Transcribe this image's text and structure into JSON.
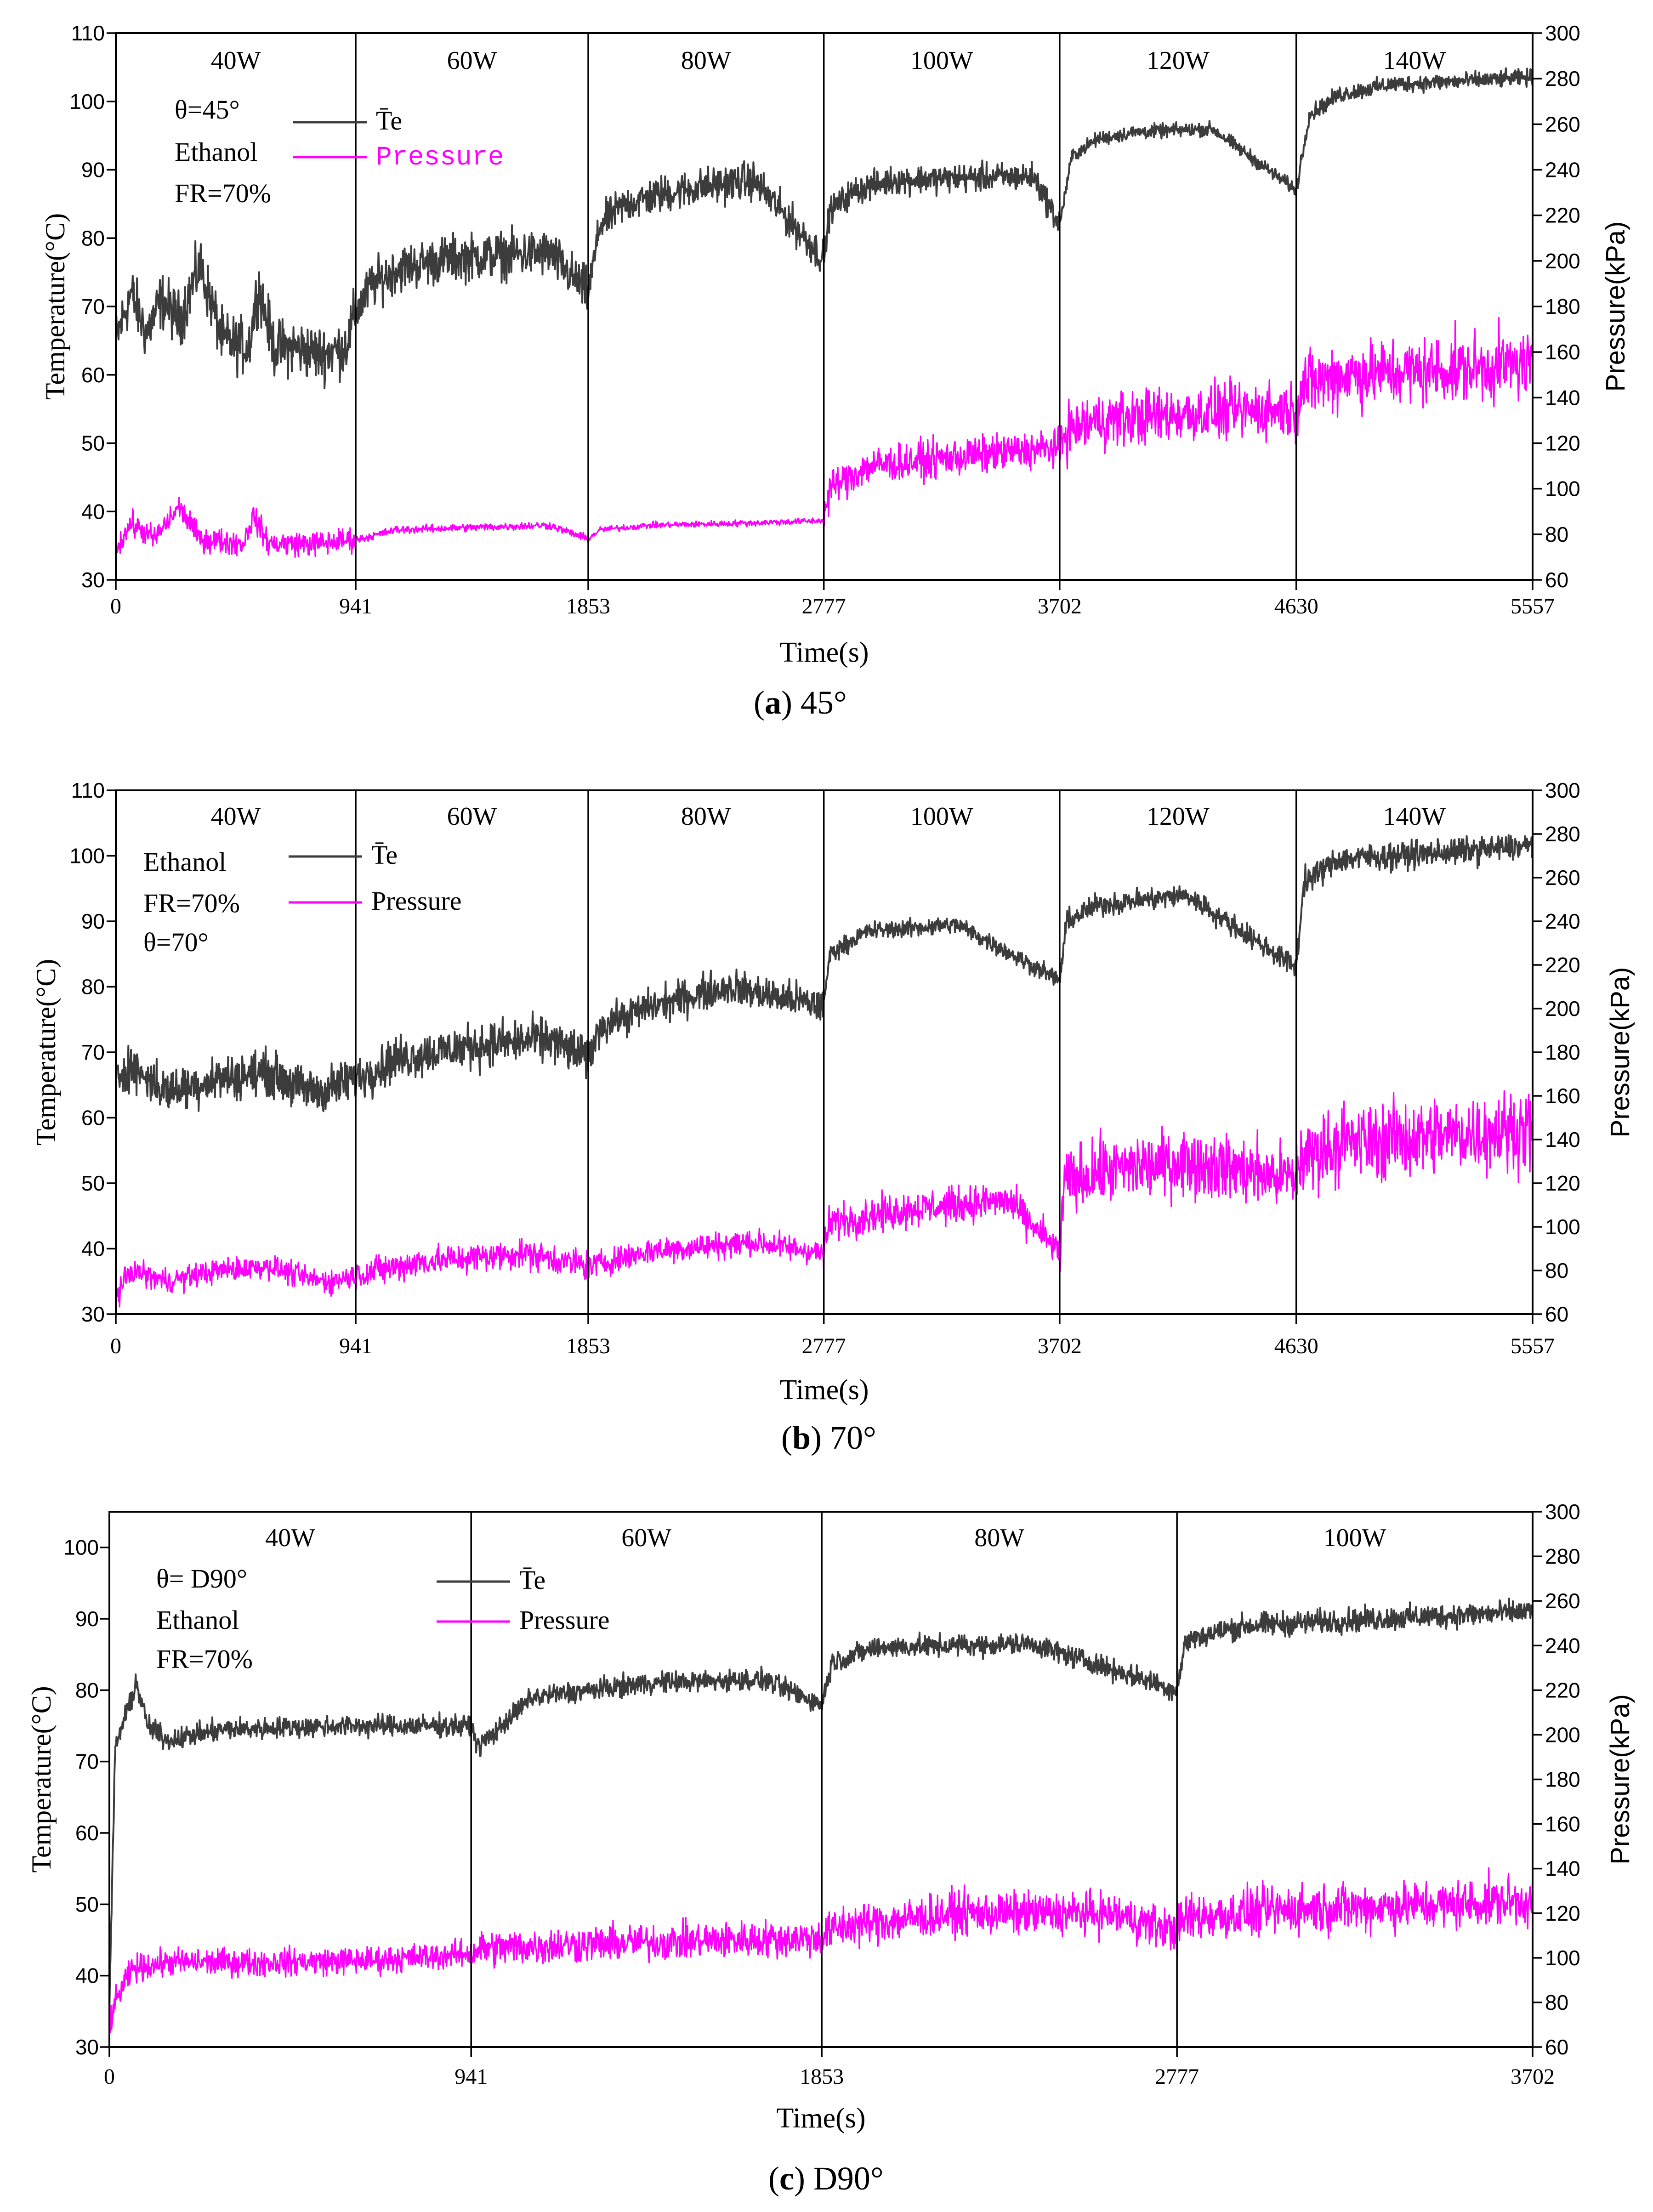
{
  "colors": {
    "temperature": "#3c3c3c",
    "pressure": "#ff00ff",
    "axis": "#000000"
  },
  "chart_data": [
    {
      "type": "line",
      "caption": {
        "letter": "a",
        "text": "45°"
      },
      "xlabel": "Time(s)",
      "ylabel_left": "Temperature(°C)",
      "ylabel_right": "Pressure(kPa)",
      "xlim": [
        0,
        5557
      ],
      "ylim_left": [
        30,
        110
      ],
      "ylim_right": [
        60,
        300
      ],
      "x_ticks": [
        0,
        941,
        1853,
        2777,
        3702,
        4630,
        5557
      ],
      "x_tick_labels": [
        "0",
        "941",
        "1853",
        "2777",
        "3702",
        "4630",
        "5557"
      ],
      "y_ticks_left": [
        30,
        40,
        50,
        60,
        70,
        80,
        90,
        100,
        110
      ],
      "y_tick_labels_left": [
        "30",
        "40",
        "50",
        "60",
        "70",
        "80",
        "90",
        "100",
        "110"
      ],
      "y_ticks_right": [
        60,
        80,
        100,
        120,
        140,
        160,
        180,
        200,
        220,
        240,
        260,
        280,
        300
      ],
      "y_tick_labels_right": [
        "60",
        "80",
        "100",
        "120",
        "140",
        "160",
        "180",
        "200",
        "220",
        "240",
        "260",
        "280",
        "300"
      ],
      "segment_bounds": [
        0,
        941,
        1853,
        2777,
        3702,
        4630,
        5557
      ],
      "segment_labels": [
        "40W",
        "60W",
        "80W",
        "100W",
        "120W",
        "140W"
      ],
      "annotations": [
        "θ=45°",
        "Ethanol",
        "FR=70%"
      ],
      "legend": {
        "position": "top-left",
        "entries": [
          "T̄e",
          "Pressure"
        ]
      },
      "series": [
        {
          "name": "T̄e",
          "axis": "left",
          "x": [
            0,
            60,
            120,
            180,
            250,
            330,
            420,
            520,
            560,
            620,
            700,
            800,
            900,
            941,
            1000,
            1100,
            1300,
            1500,
            1700,
            1853,
            1900,
            2000,
            2150,
            2300,
            2500,
            2777,
            2800,
            2900,
            3050,
            3300,
            3600,
            3702,
            3750,
            3850,
            4000,
            4300,
            4630,
            4680,
            4800,
            5000,
            5300,
            5557
          ],
          "y": [
            65,
            72,
            66,
            71,
            68,
            76,
            65,
            64,
            73,
            64,
            64,
            63,
            64,
            69,
            73,
            75.5,
            77,
            77.5,
            77.8,
            72,
            82,
            85,
            86.5,
            87.5,
            88.5,
            77,
            84,
            87,
            88.5,
            88.8,
            89,
            82,
            92,
            94.5,
            95.5,
            96,
            87,
            98,
            101,
            102.5,
            103,
            103.5
          ],
          "noise": [
            6,
            5,
            4,
            3,
            1.5,
            1.8
          ]
        },
        {
          "name": "Pressure",
          "axis": "right",
          "x": [
            0,
            60,
            150,
            250,
            330,
            500,
            540,
            600,
            800,
            941,
            960,
            1100,
            1400,
            1700,
            1853,
            1900,
            2100,
            2500,
            2777,
            2800,
            2950,
            3300,
            3702,
            3720,
            3850,
            4200,
            4630,
            4650,
            4800,
            5200,
            5557
          ],
          "y": [
            73,
            85,
            78,
            92,
            78,
            76,
            88,
            76,
            76,
            78,
            78,
            82,
            83,
            84,
            78,
            82,
            84,
            85,
            86,
            100,
            110,
            114,
            118,
            125,
            130,
            133,
            135,
            145,
            150,
            152,
            155
          ],
          "noise": [
            8,
            2.5,
            2,
            12,
            18,
            22
          ]
        }
      ]
    },
    {
      "type": "line",
      "caption": {
        "letter": "b",
        "text": "70°"
      },
      "xlabel": "Time(s)",
      "ylabel_left": "Temperature(°C)",
      "ylabel_right": "Pressure(kPa)",
      "xlim": [
        0,
        5557
      ],
      "ylim_left": [
        30,
        110
      ],
      "ylim_right": [
        60,
        300
      ],
      "x_ticks": [
        0,
        941,
        1853,
        2777,
        3702,
        4630,
        5557
      ],
      "x_tick_labels": [
        "0",
        "941",
        "1853",
        "2777",
        "3702",
        "4630",
        "5557"
      ],
      "y_ticks_left": [
        30,
        40,
        50,
        60,
        70,
        80,
        90,
        100,
        110
      ],
      "y_tick_labels_left": [
        "30",
        "40",
        "50",
        "60",
        "70",
        "80",
        "90",
        "100",
        "110"
      ],
      "y_ticks_right": [
        60,
        80,
        100,
        120,
        140,
        160,
        180,
        200,
        220,
        240,
        260,
        280,
        300
      ],
      "y_tick_labels_right": [
        "60",
        "80",
        "100",
        "120",
        "140",
        "160",
        "180",
        "200",
        "220",
        "240",
        "260",
        "280",
        "300"
      ],
      "segment_bounds": [
        0,
        941,
        1853,
        2777,
        3702,
        4630,
        5557
      ],
      "segment_labels": [
        "40W",
        "60W",
        "80W",
        "100W",
        "120W",
        "140W"
      ],
      "annotations": [
        "Ethanol",
        "FR=70%",
        "θ=70°"
      ],
      "legend": {
        "position": "top-left",
        "entries": [
          "T̄e",
          "Pressure"
        ]
      },
      "series": [
        {
          "name": "T̄e",
          "axis": "left",
          "x": [
            0,
            50,
            200,
            400,
            600,
            720,
            800,
            941,
            1100,
            1400,
            1700,
            1853,
            1900,
            2100,
            2400,
            2777,
            2800,
            2950,
            3300,
            3702,
            3730,
            3850,
            4200,
            4630,
            4660,
            4800,
            5200,
            5557
          ],
          "y": [
            66,
            68,
            64,
            66,
            67,
            64.5,
            64,
            66,
            69,
            71,
            72,
            69,
            74,
            77,
            80,
            77,
            85,
            88.5,
            89.5,
            81,
            90,
            92.5,
            94,
            83,
            96,
            99.5,
            100.5,
            101.5
          ],
          "noise": [
            5,
            5,
            4,
            2,
            2.5,
            3
          ]
        },
        {
          "name": "Pressure",
          "axis": "right",
          "x": [
            0,
            60,
            200,
            400,
            600,
            760,
            850,
            941,
            1200,
            1600,
            1853,
            2100,
            2500,
            2777,
            2800,
            3100,
            3500,
            3702,
            3720,
            3850,
            4200,
            4630,
            4650,
            4800,
            5200,
            5557
          ],
          "y": [
            68,
            80,
            75,
            80,
            82,
            76,
            75,
            78,
            84,
            88,
            82,
            89,
            93,
            88,
            102,
            108,
            112,
            88,
            120,
            125,
            130,
            122,
            132,
            138,
            142,
            145
          ],
          "noise": [
            8,
            10,
            9,
            12,
            22,
            26
          ]
        }
      ]
    },
    {
      "type": "line",
      "caption": {
        "letter": "c",
        "text": "D90°"
      },
      "xlabel": "Time(s)",
      "ylabel_left": "Temperature(°C)",
      "ylabel_right": "Pressure(kPa)",
      "xlim": [
        0,
        3702
      ],
      "ylim_left": [
        30,
        105
      ],
      "ylim_right": [
        60,
        300
      ],
      "x_ticks": [
        0,
        941,
        1853,
        2777,
        3702
      ],
      "x_tick_labels": [
        "0",
        "941",
        "1853",
        "2777",
        "3702"
      ],
      "y_ticks_left": [
        30,
        40,
        50,
        60,
        70,
        80,
        90,
        100
      ],
      "y_tick_labels_left": [
        "30",
        "40",
        "50",
        "60",
        "70",
        "80",
        "90",
        "100"
      ],
      "y_ticks_right": [
        60,
        80,
        100,
        120,
        140,
        160,
        180,
        200,
        220,
        240,
        260,
        280,
        300
      ],
      "y_tick_labels_right": [
        "60",
        "80",
        "100",
        "120",
        "140",
        "160",
        "180",
        "200",
        "220",
        "240",
        "260",
        "280",
        "300"
      ],
      "segment_bounds": [
        0,
        941,
        1853,
        2777,
        3702
      ],
      "segment_labels": [
        "40W",
        "60W",
        "80W",
        "100W"
      ],
      "annotations": [
        "θ= D90°",
        "Ethanol",
        "FR=70%"
      ],
      "legend": {
        "position": "top-left",
        "entries": [
          "T̄e",
          "Pressure"
        ]
      },
      "series": [
        {
          "name": "T̄e",
          "axis": "left",
          "x": [
            0,
            15,
            40,
            70,
            100,
            150,
            300,
            600,
            941,
            960,
            1100,
            1400,
            1700,
            1853,
            1880,
            2000,
            2400,
            2777,
            2800,
            2950,
            3300,
            3702
          ],
          "y": [
            35,
            72,
            76,
            81,
            75,
            73,
            74.5,
            75,
            75,
            72,
            79,
            81,
            81.5,
            78,
            84,
            86,
            86.5,
            80,
            87,
            89,
            90,
            91
          ],
          "noise": [
            2.2,
            2.2,
            2.2,
            2.5
          ]
        },
        {
          "name": "Pressure",
          "axis": "right",
          "x": [
            0,
            20,
            60,
            150,
            400,
            700,
            941,
            960,
            1200,
            1600,
            1853,
            1900,
            2200,
            2600,
            2777,
            2800,
            3100,
            3500,
            3702
          ],
          "y": [
            70,
            82,
            95,
            98,
            98,
            99,
            102,
            104,
            106,
            108,
            109,
            114,
            120,
            120,
            112,
            118,
            122,
            124,
            126
          ],
          "noise": [
            9,
            12,
            14,
            16
          ]
        }
      ]
    }
  ]
}
